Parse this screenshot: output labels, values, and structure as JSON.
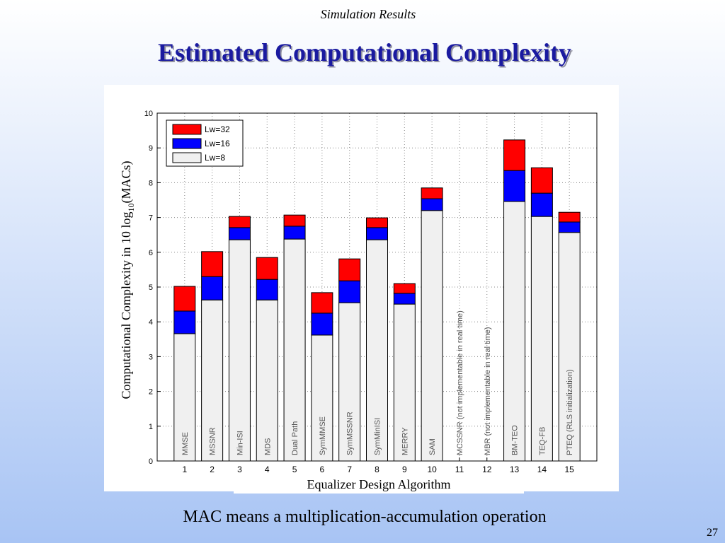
{
  "header": "Simulation Results",
  "title": "Estimated Computational Complexity",
  "footer": "MAC means a multiplication-accumulation operation",
  "page_number": "27",
  "chart_data": {
    "type": "bar",
    "stacked": true,
    "y_label": "Computational Complexity in 10 log",
    "y_label_sub": "10",
    "y_label_end": "(MACs)",
    "x_label": "Equalizer Design Algorithm",
    "x": [
      1,
      2,
      3,
      4,
      5,
      6,
      7,
      8,
      9,
      10,
      11,
      12,
      13,
      14,
      15
    ],
    "bar_labels": [
      "MMSE",
      "MSSNR",
      "Min-ISI",
      "MDS",
      "Dual Path",
      "SymMMSE",
      "SymMSSNR",
      "SymMinISI",
      "MERRY",
      "SAM",
      "MCSSNR (not implementable in real time)",
      "MBR (not implementable in real time)",
      "BM-TEO",
      "TEQ-FB",
      "PTEQ (RLS initialization)"
    ],
    "xlim": [
      0,
      16
    ],
    "ylim": [
      0,
      10
    ],
    "yticks": [
      0,
      1,
      2,
      3,
      4,
      5,
      6,
      7,
      8,
      9,
      10
    ],
    "grid": true,
    "legend": "upper left",
    "series": [
      {
        "name": "Lw=8",
        "color": "#f0f0f0",
        "values": [
          3.66,
          4.63,
          6.36,
          4.63,
          6.38,
          3.62,
          4.55,
          6.36,
          4.51,
          7.2,
          null,
          null,
          7.46,
          7.03,
          6.57
        ]
      },
      {
        "name": "Lw=16",
        "color": "#0000ff",
        "values": [
          0.65,
          0.67,
          0.35,
          0.59,
          0.37,
          0.63,
          0.63,
          0.35,
          0.31,
          0.34,
          null,
          null,
          0.89,
          0.67,
          0.3
        ]
      },
      {
        "name": "Lw=32",
        "color": "#ff0000",
        "values": [
          0.71,
          0.72,
          0.32,
          0.63,
          0.32,
          0.59,
          0.63,
          0.28,
          0.28,
          0.31,
          null,
          null,
          0.88,
          0.73,
          0.28
        ]
      }
    ]
  }
}
